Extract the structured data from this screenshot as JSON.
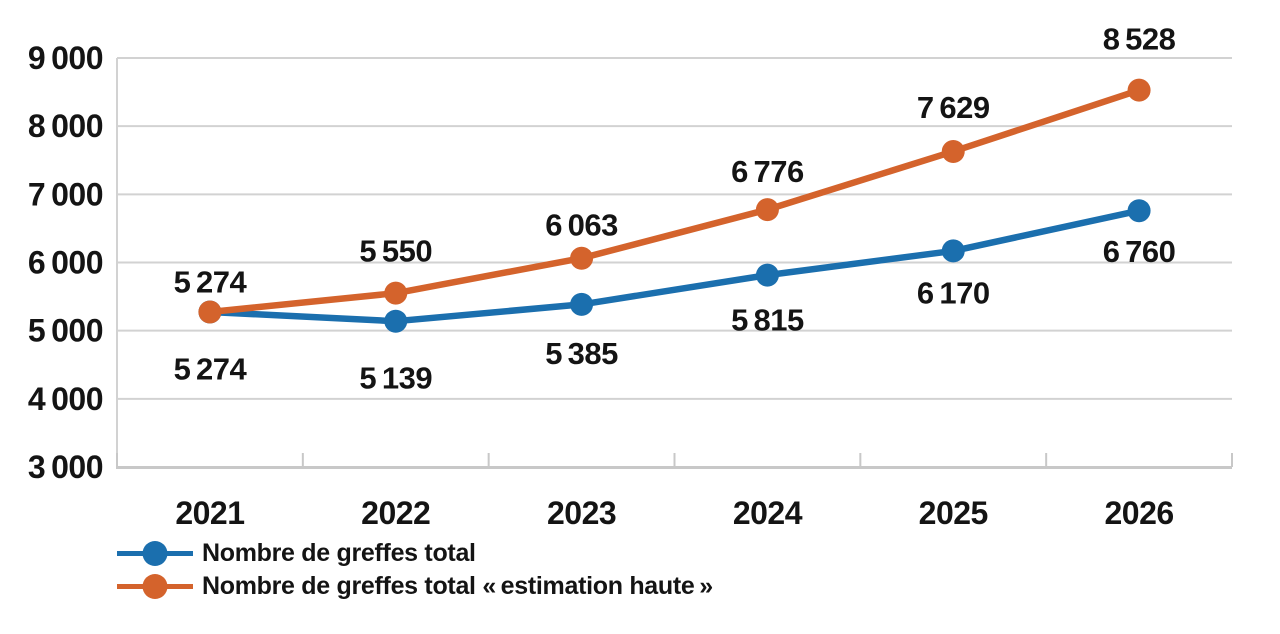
{
  "page": {
    "background": "#ffffff"
  },
  "chart_data": {
    "type": "line",
    "title": "",
    "categories": [
      "2021",
      "2022",
      "2023",
      "2024",
      "2025",
      "2026"
    ],
    "series": [
      {
        "name": "Nombre de greffes total",
        "color": "#1b6fae",
        "values": [
          5274,
          5139,
          5385,
          5815,
          6170,
          6760
        ],
        "labels": [
          "5 274",
          "5 139",
          "5 385",
          "5 815",
          "6 170",
          "6 760"
        ],
        "label_position": "below",
        "label_dy": [
          57,
          57,
          49,
          45,
          42,
          41
        ]
      },
      {
        "name": "Nombre de greffes total « estimation haute »",
        "color": "#d4632c",
        "values": [
          5274,
          5550,
          6063,
          6776,
          7629,
          8528
        ],
        "labels": [
          "5 274",
          "5 550",
          "6 063",
          "6 776",
          "7 629",
          "8 528"
        ],
        "label_position": "above",
        "label_dy": [
          -30,
          -42,
          -33,
          -38,
          -44,
          -51
        ]
      }
    ],
    "x_axis": {
      "tick_labels": [
        "2021",
        "2022",
        "2023",
        "2024",
        "2025",
        "2026"
      ]
    },
    "y_axis": {
      "min": 3000,
      "max": 9000,
      "step": 1000,
      "tick_labels": [
        "3 000",
        "4 000",
        "5 000",
        "6 000",
        "7 000",
        "8 000",
        "9 000"
      ]
    },
    "grid": true,
    "legend_position": "bottom-left",
    "style": {
      "grid_color": "#d2d2d2",
      "axis_color": "#c8c8c8",
      "text_color": "#141414",
      "marker_radius": 11.5,
      "line_width": 6.5
    }
  }
}
